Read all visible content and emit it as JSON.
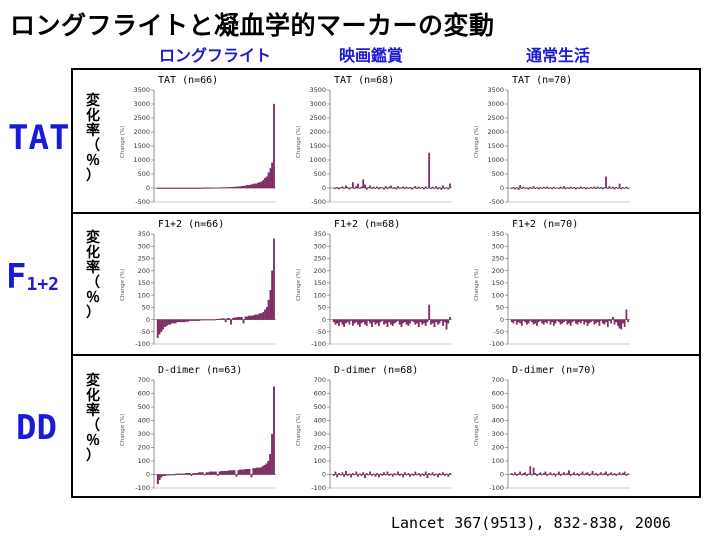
{
  "title": "ロングフライトと凝血学的マーカーの変動",
  "columns": [
    "ロングフライト",
    "映画鑑賞",
    "通常生活"
  ],
  "rows": [
    {
      "label_main": "TAT",
      "label_sub": ""
    },
    {
      "label_main": "F",
      "label_sub": "1+2"
    },
    {
      "label_main": "DD",
      "label_sub": ""
    }
  ],
  "y_axis_label": [
    "変",
    "化",
    "率",
    "（",
    "％",
    "）"
  ],
  "y_axis_small": "Change (%)",
  "citation": "Lancet 367(9513), 832-838, 2006",
  "colors": {
    "bar": "#8a2a6a",
    "bar_edge": "#4a1038",
    "heading": "#1a1ad8"
  },
  "chart_data": [
    {
      "type": "bar",
      "row": "TAT",
      "group": "ロングフライト",
      "title": "TAT (n=66)",
      "ylim": [
        -500,
        3500
      ],
      "yticks": [
        -500,
        0,
        500,
        1000,
        1500,
        2000,
        2500,
        3000,
        3500
      ],
      "values": [
        -10,
        -10,
        -10,
        -10,
        -10,
        -10,
        -10,
        -5,
        -5,
        -5,
        -5,
        -5,
        -5,
        -5,
        0,
        0,
        0,
        0,
        0,
        0,
        0,
        0,
        0,
        0,
        0,
        5,
        5,
        5,
        5,
        5,
        5,
        10,
        10,
        10,
        10,
        15,
        15,
        20,
        20,
        20,
        25,
        30,
        30,
        40,
        40,
        50,
        50,
        60,
        70,
        80,
        100,
        100,
        110,
        130,
        150,
        150,
        180,
        200,
        220,
        280,
        350,
        400,
        550,
        700,
        900,
        3000
      ]
    },
    {
      "type": "bar",
      "row": "TAT",
      "group": "映画鑑賞",
      "title": "TAT (n=68)",
      "ylim": [
        -500,
        3500
      ],
      "yticks": [
        -500,
        0,
        500,
        1000,
        1500,
        2000,
        2500,
        3000,
        3500
      ],
      "values": [
        10,
        -20,
        30,
        -40,
        20,
        50,
        -10,
        80,
        30,
        -50,
        20,
        200,
        -30,
        60,
        150,
        -20,
        40,
        300,
        120,
        -60,
        30,
        80,
        -30,
        40,
        -20,
        50,
        -40,
        30,
        20,
        -50,
        60,
        -30,
        40,
        80,
        -20,
        30,
        -40,
        60,
        -20,
        20,
        50,
        -30,
        40,
        -20,
        30,
        -50,
        20,
        60,
        -30,
        40,
        -20,
        30,
        -40,
        50,
        -20,
        1250,
        -30,
        40,
        -20,
        60,
        -40,
        30,
        -60,
        80,
        -30,
        20,
        -50,
        150
      ]
    },
    {
      "type": "bar",
      "row": "TAT",
      "group": "通常生活",
      "title": "TAT (n=70)",
      "ylim": [
        -500,
        3500
      ],
      "yticks": [
        -500,
        0,
        500,
        1000,
        1500,
        2000,
        2500,
        3000,
        3500
      ],
      "values": [
        -20,
        30,
        -40,
        20,
        -60,
        100,
        -30,
        40,
        -20,
        10,
        -50,
        30,
        -20,
        60,
        -30,
        20,
        -40,
        30,
        -10,
        40,
        -20,
        50,
        -30,
        20,
        -40,
        30,
        -20,
        10,
        -30,
        40,
        -20,
        60,
        -40,
        20,
        -30,
        40,
        -20,
        30,
        -50,
        20,
        -30,
        50,
        -20,
        30,
        -40,
        20,
        -10,
        30,
        -20,
        40,
        -30,
        50,
        -20,
        30,
        -40,
        20,
        400,
        -30,
        60,
        -20,
        40,
        -50,
        30,
        -20,
        150,
        -40,
        30,
        -20,
        40,
        -30
      ]
    },
    {
      "type": "bar",
      "row": "F1+2",
      "group": "ロングフライト",
      "title": "F1+2 (n=66)",
      "ylim": [
        -100,
        350
      ],
      "yticks": [
        -100,
        -50,
        0,
        50,
        100,
        150,
        200,
        250,
        300,
        350
      ],
      "values": [
        -75,
        -60,
        -50,
        -40,
        -30,
        -25,
        -20,
        -20,
        -15,
        -15,
        -15,
        -10,
        -10,
        -10,
        -10,
        -10,
        -8,
        -8,
        -5,
        -5,
        -5,
        -5,
        -5,
        -5,
        -3,
        -3,
        -2,
        -2,
        0,
        0,
        0,
        0,
        0,
        2,
        2,
        3,
        3,
        5,
        -10,
        5,
        5,
        -20,
        5,
        8,
        8,
        10,
        10,
        10,
        -15,
        12,
        12,
        15,
        15,
        15,
        18,
        20,
        20,
        25,
        25,
        30,
        40,
        50,
        80,
        120,
        200,
        330
      ]
    },
    {
      "type": "bar",
      "row": "F1+2",
      "group": "映画鑑賞",
      "title": "F1+2 (n=68)",
      "ylim": [
        -100,
        350
      ],
      "yticks": [
        -100,
        -50,
        0,
        50,
        100,
        150,
        200,
        250,
        300,
        350
      ],
      "values": [
        -10,
        -20,
        -15,
        -25,
        -10,
        -20,
        -30,
        -15,
        -10,
        -20,
        -5,
        -25,
        -15,
        -10,
        -20,
        -30,
        -15,
        -10,
        -20,
        -25,
        -5,
        -15,
        -30,
        -10,
        -20,
        -15,
        -25,
        -10,
        -5,
        -20,
        -15,
        -30,
        -10,
        -20,
        -25,
        -15,
        -10,
        -5,
        -20,
        -30,
        -15,
        -10,
        -20,
        -25,
        -15,
        -5,
        -10,
        -20,
        -15,
        -30,
        -10,
        -20,
        -15,
        -25,
        -10,
        60,
        -20,
        -15,
        -30,
        -10,
        -20,
        -15,
        -5,
        -25,
        -10,
        -40,
        -15,
        10
      ]
    },
    {
      "type": "bar",
      "row": "F1+2",
      "group": "通常生活",
      "title": "F1+2 (n=70)",
      "ylim": [
        -100,
        350
      ],
      "yticks": [
        -100,
        -50,
        0,
        50,
        100,
        150,
        200,
        250,
        300,
        350
      ],
      "values": [
        -10,
        -15,
        -5,
        -20,
        -10,
        -15,
        -25,
        -5,
        -10,
        -20,
        -15,
        -5,
        -10,
        -20,
        -15,
        -25,
        -10,
        -5,
        -15,
        -20,
        -10,
        -15,
        -5,
        -20,
        -10,
        -25,
        -15,
        -5,
        -10,
        -20,
        -15,
        -10,
        -5,
        -20,
        -15,
        -25,
        -10,
        -5,
        -15,
        -20,
        -10,
        -15,
        -5,
        -20,
        -10,
        -25,
        -15,
        -10,
        -5,
        -20,
        -15,
        -10,
        -25,
        -5,
        -15,
        -20,
        -10,
        -30,
        -5,
        -15,
        10,
        -20,
        -10,
        -25,
        -35,
        -40,
        -15,
        -30,
        40,
        -10
      ]
    },
    {
      "type": "bar",
      "row": "DD",
      "group": "ロングフライト",
      "title": "D-dimer (n=63)",
      "ylim": [
        -100,
        700
      ],
      "yticks": [
        -100,
        0,
        100,
        200,
        300,
        400,
        500,
        600,
        700
      ],
      "values": [
        -70,
        -40,
        -20,
        -10,
        -10,
        -5,
        -5,
        0,
        0,
        0,
        5,
        5,
        5,
        5,
        5,
        10,
        10,
        10,
        -10,
        10,
        10,
        10,
        15,
        15,
        15,
        -5,
        15,
        15,
        20,
        20,
        20,
        20,
        -10,
        20,
        25,
        25,
        25,
        25,
        30,
        30,
        30,
        30,
        -15,
        30,
        35,
        35,
        35,
        40,
        40,
        40,
        -20,
        45,
        45,
        50,
        50,
        50,
        60,
        70,
        80,
        100,
        150,
        300,
        650
      ]
    },
    {
      "type": "bar",
      "row": "DD",
      "group": "映画鑑賞",
      "title": "D-dimer (n=68)",
      "ylim": [
        -100,
        700
      ],
      "yticks": [
        -100,
        0,
        100,
        200,
        300,
        400,
        500,
        600,
        700
      ],
      "values": [
        -10,
        20,
        -20,
        10,
        -5,
        15,
        -15,
        25,
        -10,
        5,
        -20,
        10,
        -5,
        20,
        -15,
        5,
        -10,
        15,
        -25,
        10,
        -5,
        20,
        -10,
        5,
        -15,
        10,
        -20,
        5,
        -10,
        15,
        -5,
        20,
        -10,
        5,
        -15,
        10,
        -5,
        20,
        -10,
        5,
        -20,
        15,
        -5,
        10,
        -15,
        5,
        -10,
        20,
        -5,
        10,
        -15,
        5,
        -10,
        20,
        -25,
        10,
        -5,
        15,
        -10,
        5,
        -20,
        10,
        -5,
        15,
        -10,
        5,
        -15,
        10
      ]
    },
    {
      "type": "bar",
      "row": "DD",
      "group": "通常生活",
      "title": "D-dimer (n=70)",
      "ylim": [
        -100,
        700
      ],
      "yticks": [
        -100,
        0,
        100,
        200,
        300,
        400,
        500,
        600,
        700
      ],
      "values": [
        10,
        -5,
        15,
        -10,
        5,
        20,
        -5,
        10,
        15,
        -10,
        5,
        60,
        -5,
        50,
        10,
        -10,
        5,
        15,
        -5,
        10,
        20,
        -10,
        5,
        15,
        -5,
        10,
        -15,
        5,
        20,
        -10,
        5,
        15,
        -5,
        10,
        30,
        -10,
        5,
        15,
        -5,
        10,
        -10,
        5,
        20,
        -5,
        10,
        15,
        -10,
        5,
        25,
        -5,
        10,
        -10,
        5,
        15,
        -5,
        10,
        20,
        -10,
        5,
        15,
        -5,
        10,
        -10,
        5,
        15,
        -5,
        10,
        20,
        -10,
        5
      ]
    }
  ]
}
